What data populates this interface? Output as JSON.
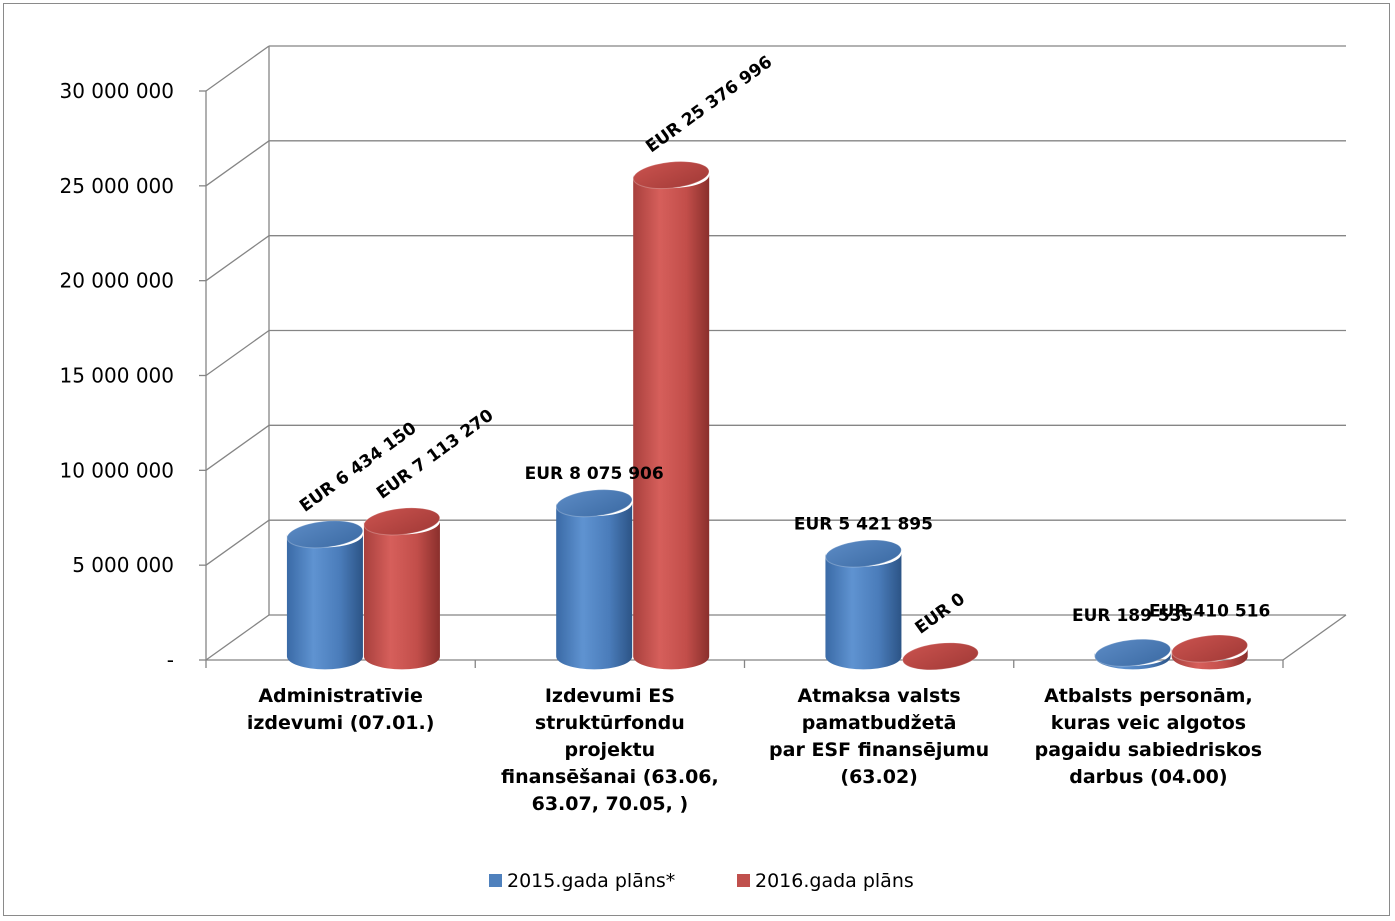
{
  "chart_data": {
    "type": "bar",
    "categories": [
      [
        "Administratīvie",
        "izdevumi (07.01.)"
      ],
      [
        "Izdevumi ES",
        "struktūrfondu",
        "projektu",
        "finansēšanai (63.06,",
        "63.07, 70.05, )"
      ],
      [
        "Atmaksa valsts",
        "pamatbudžetā",
        "par ESF finansējumu",
        "(63.02)"
      ],
      [
        "Atbalsts personām,",
        "kuras veic algotos",
        "pagaidu sabiedriskos",
        "darbus (04.00)"
      ]
    ],
    "series": [
      {
        "name": "2015.gada plāns*",
        "color": "#4f81bd",
        "values": [
          6434150,
          8075906,
          5421895,
          189535
        ],
        "labels": [
          "EUR 6 434 150",
          "EUR 8 075 906",
          "EUR 5 421 895",
          "EUR 189 535"
        ]
      },
      {
        "name": "2016.gada plāns",
        "color": "#c0504d",
        "values": [
          7113270,
          25376996,
          0,
          410516
        ],
        "labels": [
          "EUR 7 113 270",
          "EUR 25 376 996",
          "EUR 0",
          "EUR 410 516"
        ]
      }
    ],
    "ylim": [
      0,
      30000000
    ],
    "yticks": [
      0,
      5000000,
      10000000,
      15000000,
      20000000,
      25000000,
      30000000
    ],
    "ytick_labels": [
      "-",
      "5 000 000",
      "10 000 000",
      "15 000 000",
      "20 000 000",
      "25 000 000",
      "30 000 000"
    ],
    "grid": true,
    "legend_position": "bottom",
    "title": "",
    "xlabel": "",
    "ylabel": ""
  }
}
